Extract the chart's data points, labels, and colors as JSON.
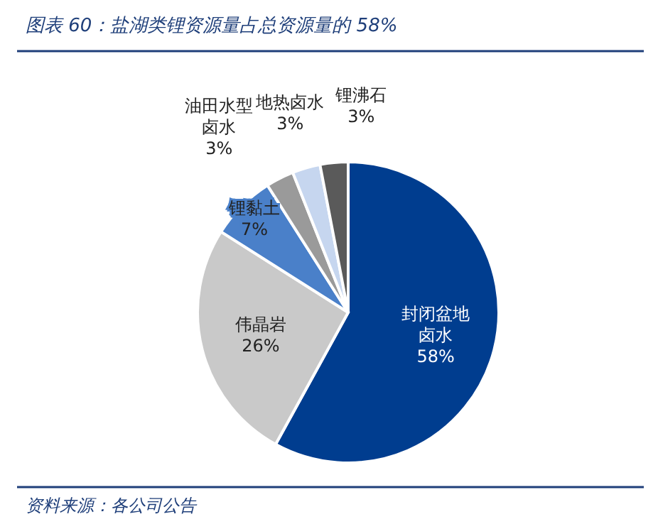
{
  "chart_data": {
    "type": "pie",
    "title": "图表 60：盐湖类锂资源量占总资源量的 58%",
    "categories": [
      "封闭盆地卤水",
      "伟晶岩",
      "锂黏土",
      "油田水型卤水",
      "地热卤水",
      "锂沸石"
    ],
    "values": [
      58,
      26,
      7,
      3,
      3,
      3
    ],
    "colors": [
      "#003d8f",
      "#c9c9c9",
      "#4a80c9",
      "#9a9a9a",
      "#c6d6ef",
      "#5a5a5a"
    ],
    "value_labels": [
      "58%",
      "26%",
      "7%",
      "3%",
      "3%",
      "3%"
    ],
    "legend": false,
    "annotations": [
      "资料来源：各公司公告"
    ]
  }
}
